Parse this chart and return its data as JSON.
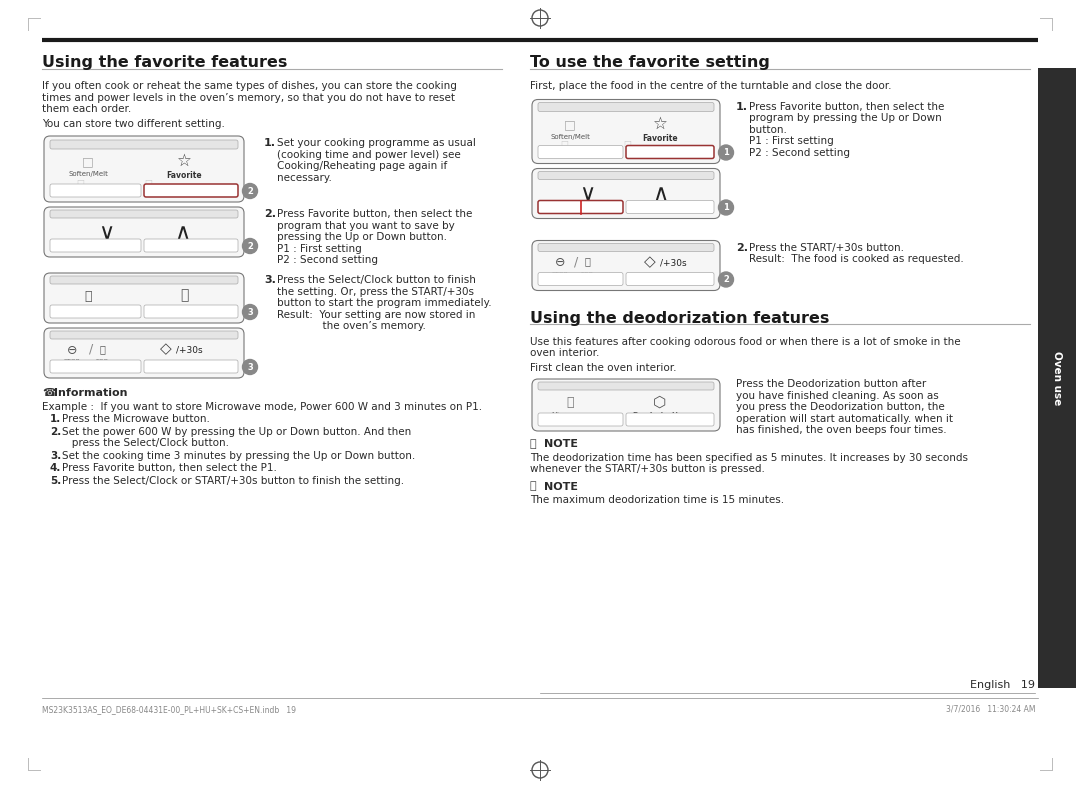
{
  "page_bg": "#ffffff",
  "top_line_color": "#1a1a1a",
  "section_line_color": "#aaaaaa",
  "sidebar_color": "#2a2a2a",
  "sidebar_text": "Oven use",
  "page_number_text": "English",
  "page_number_num": "19",
  "footer_left": "MS23K3513AS_EO_DE68-04431E-00_PL+HU+SK+CS+EN.indb   19",
  "footer_right": "3/7/2016   11:30:24 AM",
  "left_section_title": "Using the favorite features",
  "left_body1_lines": [
    "If you often cook or reheat the same types of dishes, you can store the cooking",
    "times and power levels in the oven’s memory, so that you do not have to reset",
    "them each order."
  ],
  "left_body2": "You can store two different setting.",
  "step1_text_lines": [
    "Set your cooking programme as usual",
    "(cooking time and power level) see",
    "Cooking/Reheating page again if",
    "necessary."
  ],
  "step2_text_lines": [
    "Press Favorite button, then select the",
    "program that you want to save by",
    "pressing the Up or Down button.",
    "P1 : First setting",
    "P2 : Second setting"
  ],
  "step3_text_lines": [
    "Press the Select/Clock button to finish",
    "the setting. Or, press the START/+30s",
    "button to start the program immediately.",
    "Result:  Your setting are now stored in",
    "              the oven’s memory."
  ],
  "step2_bold_words": [
    "Favorite"
  ],
  "step2_bold2_words": [
    "Up",
    "Down"
  ],
  "step3_bold_words": [
    "Select/Clock",
    "START/+30s"
  ],
  "step3_underline_words": [
    "Result:"
  ],
  "info_title": "Information",
  "info_example": "Example :  If you want to store Microwave mode, Power 600 W and 3 minutes on P1.",
  "info_steps": [
    [
      "Press the ",
      "Microwave",
      " button."
    ],
    [
      "Set the power 600 W by pressing the ",
      "Up",
      " or ",
      "Down",
      " button. And then\n   press the ",
      "Select/Clock",
      " button."
    ],
    [
      "Set the cooking time 3 minutes by pressing the ",
      "Up",
      " or ",
      "Down",
      " button."
    ],
    [
      "Press ",
      "Favorite",
      " button, then select the P1."
    ],
    [
      "Press the ",
      "Select/Clock",
      " or ",
      "START/+30s",
      " button to finish the setting."
    ]
  ],
  "right_section_title": "To use the favorite setting",
  "right_body1": "First, place the food in the centre of the turntable and close the door.",
  "right_step1_text_lines": [
    "Press Favorite button, then select the",
    "program by pressing the Up or Down",
    "button.",
    "P1 : First setting",
    "P2 : Second setting"
  ],
  "right_step2_text_lines": [
    "Press the START/+30s button.",
    "Result:  The food is cooked as requested."
  ],
  "deodorization_title": "Using the deodorization features",
  "deodorization_body1_lines": [
    "Use this features after cooking odorous food or when there is a lot of smoke in the",
    "oven interior."
  ],
  "deodorization_body2": "First clean the oven interior.",
  "deodorization_text_lines": [
    "Press the Deodorization button after",
    "you have finished cleaning. As soon as",
    "you press the Deodorization button, the",
    "operation will start automatically. when it",
    "has finished, the oven beeps four times."
  ],
  "note1_text_lines": [
    "The deodorization time has been specified as 5 minutes. It increases by 30 seconds",
    "whenever the START/+30s button is pressed."
  ],
  "note2_text": "The maximum deodorization time is 15 minutes.",
  "corner_mark_color": "#cccccc",
  "top_circle_color": "#555555",
  "bot_circle_color": "#555555"
}
